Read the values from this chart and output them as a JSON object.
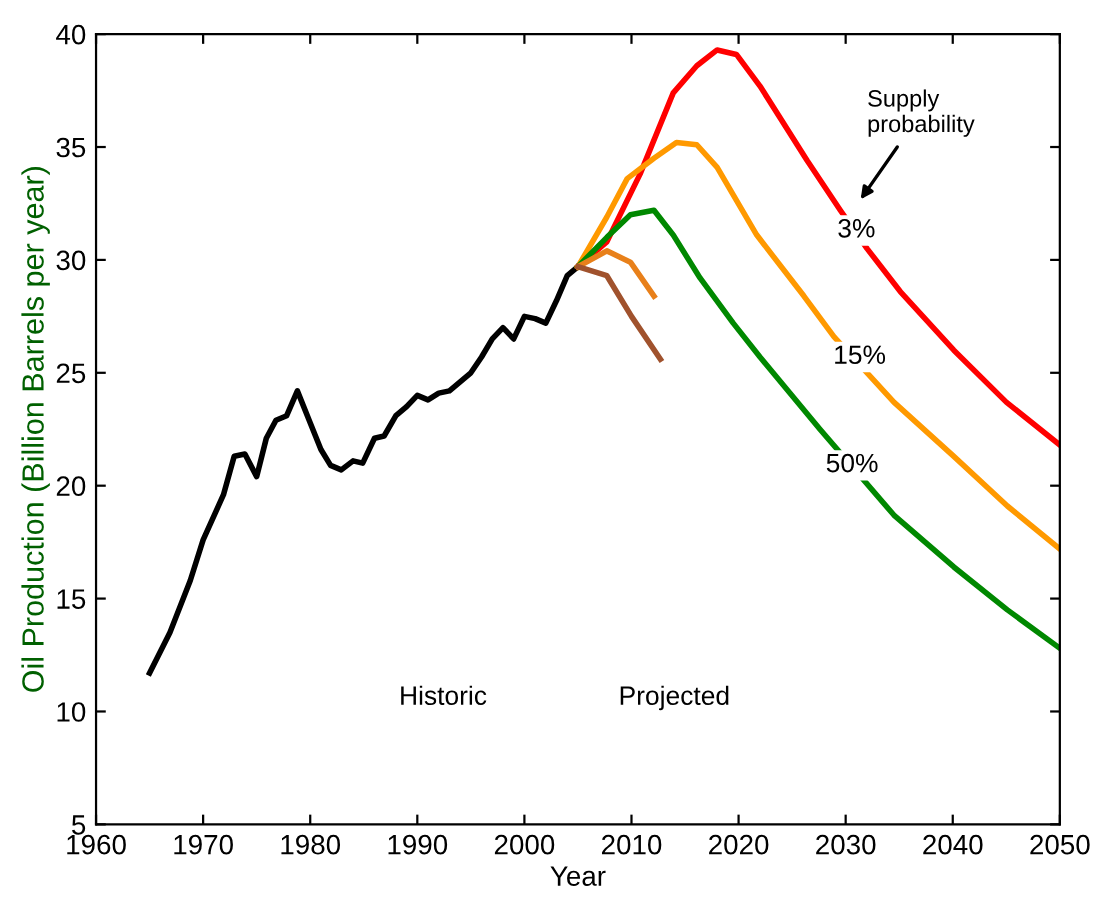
{
  "chart_data": {
    "type": "line",
    "xlabel": "Year",
    "ylabel": "Oil Production (Billion Barrels per year)",
    "xlim": [
      1960,
      2050
    ],
    "ylim": [
      5,
      40
    ],
    "xticks": [
      1960,
      1970,
      1980,
      1990,
      2000,
      2010,
      2020,
      2030,
      2040,
      2050
    ],
    "yticks": [
      5,
      10,
      15,
      20,
      25,
      30,
      35,
      40
    ],
    "grid": false,
    "marker": "none",
    "line_style": "solid",
    "series": [
      {
        "color": "#000000",
        "x": [
          1965,
          1966.9,
          1968.8,
          1970,
          1971.9,
          1972.9,
          1973.9,
          1975,
          1975.9,
          1976.8,
          1977.8,
          1978.8,
          1979.9,
          1981,
          1981.9,
          1982.9,
          1984,
          1984.9,
          1986,
          1986.9,
          1988,
          1989,
          1990,
          1991,
          1992,
          1993,
          1994,
          1995,
          1996,
          1997,
          1998,
          1999,
          2000,
          2001,
          2002,
          2003,
          2004,
          2005
        ],
        "values": [
          11.7,
          13.5,
          15.8,
          17.6,
          19.6,
          21.3,
          21.4,
          20.4,
          22.1,
          22.9,
          23.1,
          24.2,
          22.9,
          21.6,
          20.9,
          20.7,
          21.1,
          21.0,
          22.1,
          22.2,
          23.1,
          23.5,
          24.0,
          23.8,
          24.1,
          24.2,
          24.6,
          25.0,
          25.7,
          26.5,
          27.0,
          26.5,
          27.5,
          27.4,
          27.2,
          28.2,
          29.3,
          29.7
        ]
      },
      {
        "color": "#ff0000",
        "x": [
          2005,
          2007.7,
          2010.8,
          2013.9,
          2016.1,
          2018,
          2019.8,
          2022,
          2026.4,
          2029.5,
          2032,
          2035.1,
          2040.1,
          2045,
          2050
        ],
        "values": [
          29.7,
          30.8,
          33.8,
          37.4,
          38.6,
          39.3,
          39.1,
          37.7,
          34.4,
          32.2,
          30.5,
          28.6,
          26.0,
          23.7,
          21.8
        ]
      },
      {
        "color": "#ff9900",
        "x": [
          2005,
          2007.7,
          2009.6,
          2012.1,
          2014.2,
          2016.1,
          2018,
          2021.7,
          2026.1,
          2028.9,
          2034.5,
          2040.1,
          2045.1,
          2050
        ],
        "values": [
          29.7,
          31.9,
          33.6,
          34.5,
          35.2,
          35.1,
          34.1,
          31.1,
          28.4,
          26.6,
          23.7,
          21.3,
          19.1,
          17.2
        ]
      },
      {
        "color": "#008800",
        "x": [
          2005,
          2007.7,
          2009.9,
          2012.1,
          2013.9,
          2016.4,
          2019.5,
          2022,
          2027.6,
          2034.5,
          2040.1,
          2045.1,
          2050
        ],
        "values": [
          29.7,
          31.0,
          32.0,
          32.2,
          31.1,
          29.2,
          27.2,
          25.7,
          22.5,
          18.7,
          16.4,
          14.5,
          12.8
        ]
      },
      {
        "color": "#e8801a",
        "x": [
          2005,
          2007.7,
          2009.9,
          2012.1
        ],
        "values": [
          29.7,
          30.4,
          29.9,
          28.4
        ]
      },
      {
        "color": "#a0522d",
        "x": [
          2005,
          2007.7,
          2010,
          2012.7
        ],
        "values": [
          29.7,
          29.3,
          27.5,
          25.6
        ]
      }
    ],
    "annotations": [
      "Supply\nprobability",
      {
        "text": "3%",
        "x": 2031.0,
        "y": 31.3
      },
      {
        "text": "15%",
        "x": 2031.3,
        "y": 25.7
      },
      {
        "text": "50%",
        "x": 2030.6,
        "y": 20.9
      },
      "Historic",
      "Projected"
    ]
  }
}
